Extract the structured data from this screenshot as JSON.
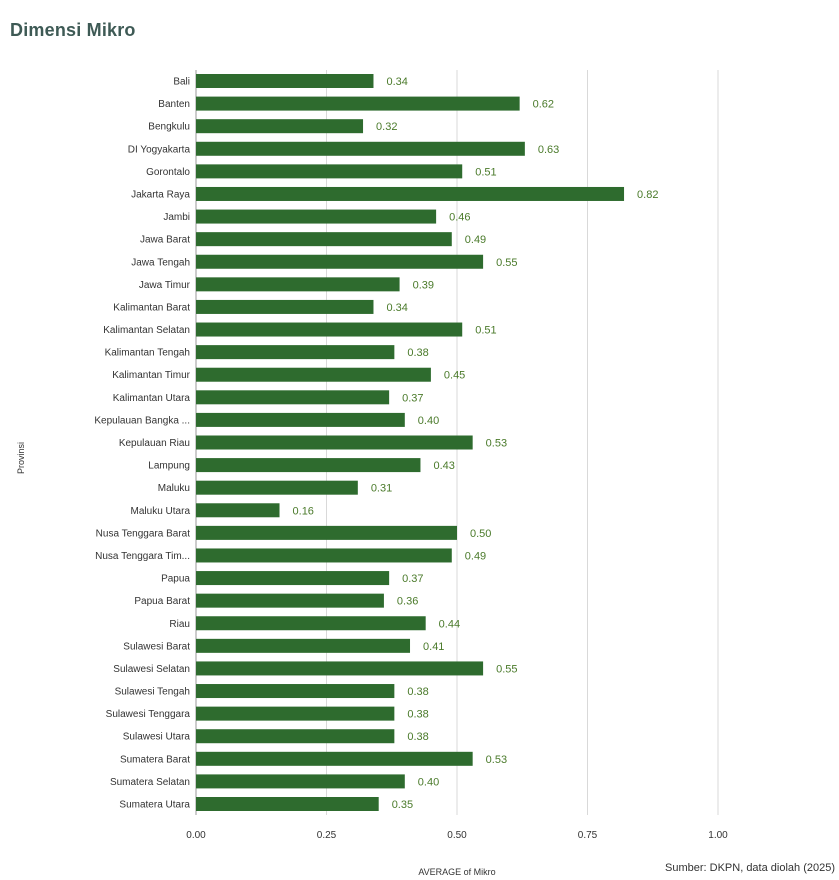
{
  "title": "Dimensi Mikro",
  "source": "Sumber: DKPN, data diolah (2025)",
  "chart_data": {
    "type": "bar",
    "orientation": "horizontal",
    "ylabel": "Provinsi",
    "xlabel": "AVERAGE of Mikro",
    "xlim": [
      0,
      1.0
    ],
    "xticks": [
      "0.00",
      "0.25",
      "0.50",
      "0.75",
      "1.00"
    ],
    "grid": true,
    "bar_color": "#2e6b2e",
    "label_color": "#4a7a2a",
    "categories": [
      "Bali",
      "Banten",
      "Bengkulu",
      "DI Yogyakarta",
      "Gorontalo",
      "Jakarta Raya",
      "Jambi",
      "Jawa Barat",
      "Jawa Tengah",
      "Jawa Timur",
      "Kalimantan Barat",
      "Kalimantan Selatan",
      "Kalimantan Tengah",
      "Kalimantan Timur",
      "Kalimantan Utara",
      "Kepulauan Bangka ...",
      "Kepulauan Riau",
      "Lampung",
      "Maluku",
      "Maluku Utara",
      "Nusa Tenggara Barat",
      "Nusa Tenggara Tim...",
      "Papua",
      "Papua Barat",
      "Riau",
      "Sulawesi Barat",
      "Sulawesi Selatan",
      "Sulawesi Tengah",
      "Sulawesi Tenggara",
      "Sulawesi Utara",
      "Sumatera Barat",
      "Sumatera Selatan",
      "Sumatera Utara"
    ],
    "values": [
      0.34,
      0.62,
      0.32,
      0.63,
      0.51,
      0.82,
      0.46,
      0.49,
      0.55,
      0.39,
      0.34,
      0.51,
      0.38,
      0.45,
      0.37,
      0.4,
      0.53,
      0.43,
      0.31,
      0.16,
      0.5,
      0.49,
      0.37,
      0.36,
      0.44,
      0.41,
      0.55,
      0.38,
      0.38,
      0.38,
      0.53,
      0.4,
      0.35
    ],
    "value_labels": [
      "0.34",
      "0.62",
      "0.32",
      "0.63",
      "0.51",
      "0.82",
      "0.46",
      "0.49",
      "0.55",
      "0.39",
      "0.34",
      "0.51",
      "0.38",
      "0.45",
      "0.37",
      "0.40",
      "0.53",
      "0.43",
      "0.31",
      "0.16",
      "0.50",
      "0.49",
      "0.37",
      "0.36",
      "0.44",
      "0.41",
      "0.55",
      "0.38",
      "0.38",
      "0.38",
      "0.53",
      "0.40",
      "0.35"
    ]
  }
}
